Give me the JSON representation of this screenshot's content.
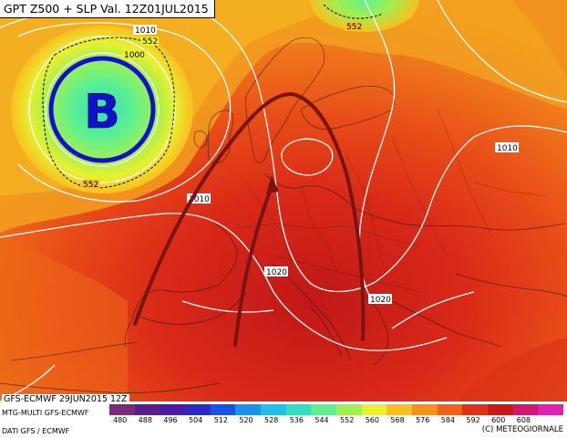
{
  "header": {
    "title": "GPT Z500 + SLP Val. 12Z01JUL2015"
  },
  "footer": {
    "run_info": "GFS-ECMWF 29JUN2015 12Z",
    "model_info": "MTG-MULTI GFS-ECMWF",
    "data_info": "DATI GFS / ECMWF",
    "copyright": "(C) METEOGIORNALE"
  },
  "low_pressure": {
    "letter": "B",
    "color": "#1010d0"
  },
  "isobar_labels": [
    "1010",
    "1000",
    "1010",
    "1010",
    "1020",
    "1020"
  ],
  "gpt_labels": [
    "552",
    "552",
    "552"
  ],
  "colorbar": {
    "labels": [
      "480",
      "488",
      "496",
      "504",
      "512",
      "520",
      "528",
      "536",
      "544",
      "552",
      "560",
      "568",
      "576",
      "584",
      "592",
      "600",
      "608"
    ],
    "colors": [
      "#7a2a7a",
      "#5c1c8c",
      "#4a1aa8",
      "#2a2ac8",
      "#1a50e8",
      "#1a90f0",
      "#20c0e8",
      "#30e0c0",
      "#60f090",
      "#a0f050",
      "#e8f030",
      "#f8c020",
      "#f89018",
      "#f06018",
      "#e03018",
      "#c81818",
      "#d01870",
      "#e020b0"
    ]
  },
  "arrows": {
    "color": "#7a1414",
    "count": 2
  }
}
